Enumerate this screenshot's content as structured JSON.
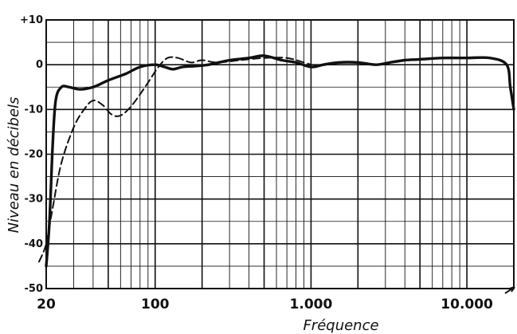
{
  "chart_data": {
    "type": "line",
    "title": "",
    "xlabel": "Fréquence",
    "ylabel": "Niveau en décibels",
    "x_scale": "log",
    "xlim": [
      20,
      20000
    ],
    "ylim": [
      -50,
      10
    ],
    "grid": true,
    "y_ticks": [
      {
        "value": 10,
        "label": "+10"
      },
      {
        "value": 0,
        "label": "0"
      },
      {
        "value": -10,
        "label": "-10"
      },
      {
        "value": -20,
        "label": "-20"
      },
      {
        "value": -30,
        "label": "-30"
      },
      {
        "value": -40,
        "label": "-40"
      },
      {
        "value": -50,
        "label": "-50"
      }
    ],
    "x_ticks": [
      {
        "value": 20,
        "label": "20"
      },
      {
        "value": 100,
        "label": "100"
      },
      {
        "value": 1000,
        "label": "1.000"
      },
      {
        "value": 10000,
        "label": "10.000"
      }
    ],
    "series": [
      {
        "style": "solid",
        "color": "#111111",
        "points": [
          [
            20,
            -45
          ],
          [
            21,
            -35
          ],
          [
            22,
            -18
          ],
          [
            23,
            -8
          ],
          [
            25,
            -5
          ],
          [
            28,
            -5
          ],
          [
            33,
            -5.5
          ],
          [
            40,
            -5
          ],
          [
            50,
            -3.5
          ],
          [
            65,
            -2
          ],
          [
            80,
            -0.5
          ],
          [
            100,
            0
          ],
          [
            115,
            -0.5
          ],
          [
            130,
            -1
          ],
          [
            150,
            -0.5
          ],
          [
            180,
            -0.3
          ],
          [
            220,
            0
          ],
          [
            300,
            1
          ],
          [
            400,
            1.5
          ],
          [
            500,
            2
          ],
          [
            650,
            1
          ],
          [
            800,
            0.5
          ],
          [
            1000,
            -0.5
          ],
          [
            1200,
            0
          ],
          [
            1500,
            0.5
          ],
          [
            2000,
            0.5
          ],
          [
            2600,
            0
          ],
          [
            3200,
            0.5
          ],
          [
            4000,
            1
          ],
          [
            5000,
            1.2
          ],
          [
            7000,
            1.5
          ],
          [
            10000,
            1.5
          ],
          [
            14000,
            1.5
          ],
          [
            18000,
            0
          ],
          [
            19000,
            -5
          ],
          [
            20000,
            -10
          ]
        ]
      },
      {
        "style": "dashed",
        "color": "#111111",
        "points": [
          [
            18,
            -44
          ],
          [
            20,
            -40
          ],
          [
            22,
            -32
          ],
          [
            25,
            -22
          ],
          [
            30,
            -14
          ],
          [
            35,
            -10
          ],
          [
            40,
            -8
          ],
          [
            46,
            -9
          ],
          [
            52,
            -11
          ],
          [
            58,
            -11.5
          ],
          [
            65,
            -10.5
          ],
          [
            75,
            -8
          ],
          [
            90,
            -4
          ],
          [
            105,
            -0.5
          ],
          [
            120,
            1.5
          ],
          [
            140,
            1.5
          ],
          [
            170,
            0.5
          ],
          [
            200,
            1
          ],
          [
            250,
            0.5
          ],
          [
            350,
            1
          ],
          [
            500,
            1.5
          ],
          [
            700,
            1.5
          ],
          [
            900,
            0.5
          ],
          [
            1000,
            0
          ]
        ]
      }
    ]
  }
}
